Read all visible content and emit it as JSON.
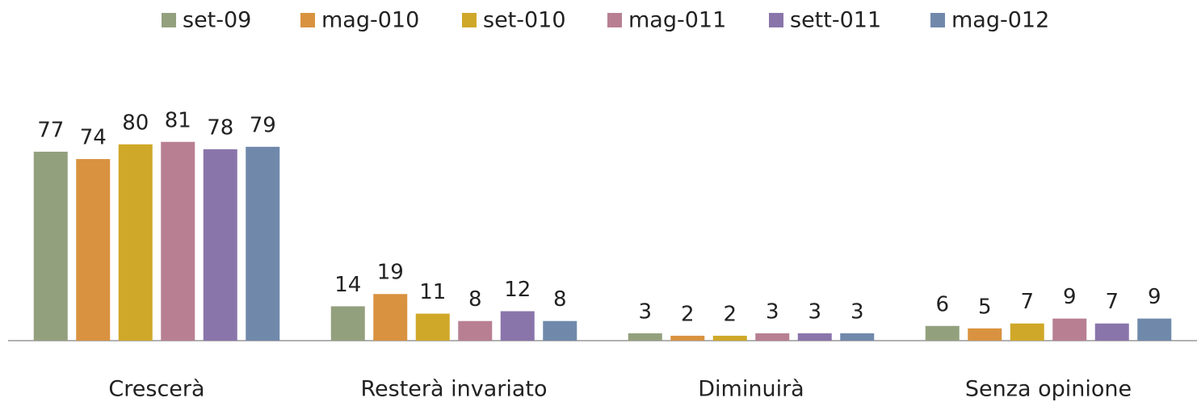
{
  "chart_data": {
    "type": "bar",
    "categories": [
      "Crescerà",
      "Resterà invariato",
      "Diminuirà",
      "Senza opinione"
    ],
    "series": [
      {
        "name": "set-09",
        "color": "#93a07e",
        "values": [
          77,
          14,
          3,
          6
        ]
      },
      {
        "name": "mag-010",
        "color": "#d99240",
        "values": [
          74,
          19,
          2,
          5
        ]
      },
      {
        "name": "set-010",
        "color": "#cfa829",
        "values": [
          80,
          11,
          2,
          7
        ]
      },
      {
        "name": "mag-011",
        "color": "#b87f92",
        "values": [
          81,
          8,
          3,
          9
        ]
      },
      {
        "name": "sett-011",
        "color": "#8a75ab",
        "values": [
          78,
          12,
          3,
          7
        ]
      },
      {
        "name": "mag-012",
        "color": "#7089ab",
        "values": [
          79,
          8,
          3,
          9
        ]
      }
    ],
    "legend": "top"
  }
}
